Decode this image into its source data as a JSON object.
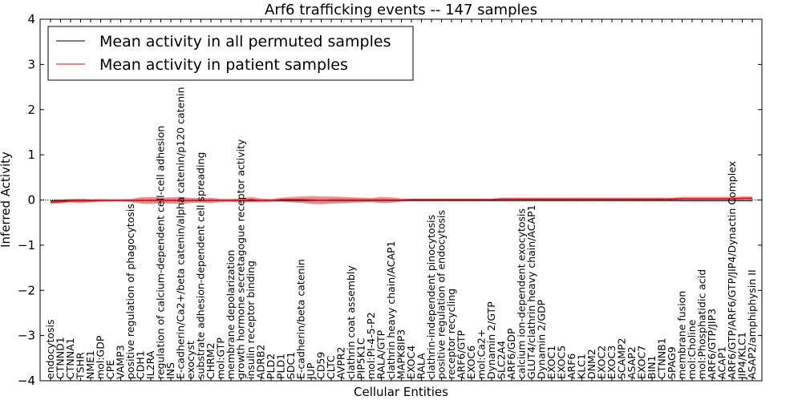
{
  "chart_data": {
    "type": "line",
    "title": "Arf6 trafficking events -- 147 samples",
    "xlabel": "Cellular Entities",
    "ylabel": "Inferred Activity",
    "ylim": [
      -4,
      4
    ],
    "yticks": [
      "−4",
      "−3",
      "−2",
      "−1",
      "0",
      "1",
      "2",
      "3",
      "4"
    ],
    "legend_position": "upper-left",
    "categories": [
      "endocytosis",
      "CTNND1",
      "CTNNA1",
      "TSHR",
      "NME1",
      "mol:GDP",
      "CPE",
      "VAMP3",
      "positive regulation of phagocytosis",
      "CDH1",
      "IL2RA",
      "regulation of calcium-dependent cell-cell adhesion",
      "INS",
      "E-cadherin/Ca2+/beta catenin/alpha catenin/p120 catenin",
      "exocyst",
      "substrate adhesion-dependent cell spreading",
      "CHRM2",
      "mol:GTP",
      "membrane depolarization",
      "growth hormone secretagogue receptor activity",
      "insulin receptor binding",
      "ADRB2",
      "PLD2",
      "PLD1",
      "SDC1",
      "E-cadherin/beta catenin",
      "JUP",
      "CD59",
      "CLTC",
      "AVPR2",
      "clathrin coat assembly",
      "PIP5K1C",
      "mol:PI-4-5-P2",
      "RALA/GTP",
      "clathrin heavy chain/ACAP1",
      "MAPK8IP3",
      "EXOC4",
      "RALA",
      "clathrin-independent pinocytosis",
      "positive regulation of endocytosis",
      "receptor recycling",
      "ARF6/GTP",
      "EXOC6",
      "mol:Ca2+",
      "Dynamin 2/GTP",
      "SLC2A4",
      "ARF6/GDP",
      "calcium ion-dependent exocytosis",
      "GLUT4/clathrin heavy chain/ACAP1",
      "Dynamin 2/GDP",
      "EXOC1",
      "EXOC5",
      "ARF6",
      "KLC1",
      "DNM2",
      "EXOC2",
      "EXOC3",
      "SCAMP2",
      "ASAP2",
      "EXOC7",
      "BIN1",
      "CTNNB1",
      "SPAG9",
      "membrane fusion",
      "mol:Choline",
      "mol:Phosphatidic acid",
      "ARF6/GTP/JIP3",
      "ACAP1",
      "ARF6/GTP/ARF6/GTP/JIP4/Dynactin Complex",
      "JIP4/KLC1",
      "ASAP2/amphiphysin II"
    ],
    "series": [
      {
        "name": "Mean activity in all permuted samples",
        "color": "#000000",
        "values": [
          -0.02,
          -0.01,
          -0.01,
          -0.01,
          -0.01,
          -0.01,
          -0.01,
          -0.01,
          -0.01,
          -0.01,
          -0.01,
          -0.01,
          -0.01,
          -0.01,
          -0.01,
          -0.01,
          -0.01,
          -0.01,
          -0.01,
          -0.01,
          -0.01,
          -0.01,
          -0.01,
          -0.01,
          -0.01,
          -0.01,
          -0.01,
          -0.01,
          -0.01,
          -0.01,
          -0.01,
          -0.01,
          -0.01,
          -0.01,
          -0.01,
          -0.01,
          -0.01,
          -0.01,
          -0.01,
          -0.01,
          -0.01,
          -0.01,
          -0.01,
          -0.01,
          -0.01,
          -0.01,
          -0.01,
          -0.01,
          -0.01,
          -0.01,
          -0.01,
          -0.01,
          -0.01,
          -0.01,
          -0.01,
          -0.01,
          -0.01,
          -0.01,
          -0.01,
          -0.01,
          -0.01,
          -0.01,
          -0.01,
          -0.01,
          -0.01,
          -0.01,
          -0.01,
          -0.01,
          -0.01,
          -0.01,
          -0.01
        ],
        "band": [
          0.05,
          0.04,
          0.04,
          0.04,
          0.04,
          0.04,
          0.04,
          0.04,
          0.04,
          0.06,
          0.06,
          0.06,
          0.06,
          0.06,
          0.06,
          0.05,
          0.05,
          0.05,
          0.04,
          0.04,
          0.04,
          0.04,
          0.04,
          0.04,
          0.05,
          0.06,
          0.06,
          0.06,
          0.06,
          0.06,
          0.06,
          0.06,
          0.05,
          0.05,
          0.05,
          0.04,
          0.03,
          0.03,
          0.03,
          0.03,
          0.03,
          0.03,
          0.03,
          0.03,
          0.03,
          0.03,
          0.03,
          0.03,
          0.03,
          0.03,
          0.03,
          0.03,
          0.03,
          0.03,
          0.03,
          0.03,
          0.03,
          0.03,
          0.03,
          0.03,
          0.03,
          0.03,
          0.03,
          0.04,
          0.04,
          0.04,
          0.04,
          0.04,
          0.04,
          0.04,
          0.04
        ]
      },
      {
        "name": "Mean activity in patient samples",
        "color": "#ff0000",
        "values": [
          -0.05,
          -0.04,
          -0.02,
          -0.02,
          -0.02,
          -0.01,
          -0.01,
          -0.01,
          -0.01,
          -0.01,
          -0.01,
          -0.01,
          -0.01,
          -0.01,
          -0.01,
          -0.01,
          -0.01,
          -0.01,
          -0.01,
          -0.01,
          0.01,
          -0.01,
          -0.01,
          0.01,
          0.01,
          0.01,
          0.0,
          -0.01,
          0.0,
          0.0,
          0.0,
          0.0,
          0.0,
          0.0,
          0.0,
          0.0,
          0.01,
          0.01,
          0.01,
          0.01,
          0.01,
          0.01,
          0.01,
          0.01,
          0.01,
          0.02,
          0.02,
          0.02,
          0.02,
          0.02,
          0.02,
          0.02,
          0.02,
          0.02,
          0.02,
          0.02,
          0.02,
          0.02,
          0.02,
          0.02,
          0.02,
          0.02,
          0.02,
          0.03,
          0.03,
          0.03,
          0.03,
          0.03,
          0.03,
          0.04,
          0.04
        ],
        "band": [
          0.04,
          0.04,
          0.04,
          0.05,
          0.03,
          0.03,
          0.02,
          0.02,
          0.03,
          0.07,
          0.08,
          0.06,
          0.07,
          0.08,
          0.05,
          0.05,
          0.06,
          0.03,
          0.03,
          0.05,
          0.06,
          0.04,
          0.03,
          0.04,
          0.06,
          0.07,
          0.09,
          0.09,
          0.08,
          0.07,
          0.06,
          0.05,
          0.04,
          0.07,
          0.06,
          0.03,
          0.02,
          0.02,
          0.02,
          0.02,
          0.02,
          0.02,
          0.02,
          0.02,
          0.02,
          0.03,
          0.03,
          0.03,
          0.03,
          0.03,
          0.03,
          0.03,
          0.03,
          0.03,
          0.03,
          0.03,
          0.03,
          0.03,
          0.03,
          0.03,
          0.03,
          0.03,
          0.03,
          0.04,
          0.04,
          0.04,
          0.04,
          0.04,
          0.04,
          0.04,
          0.04
        ]
      }
    ]
  }
}
